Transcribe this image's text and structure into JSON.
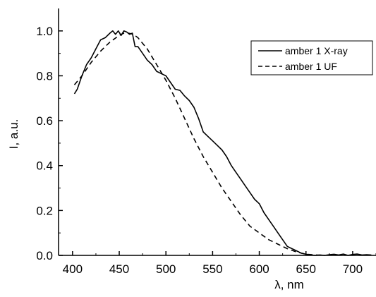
{
  "chart_data": {
    "type": "line",
    "xlabel": "λ, nm",
    "ylabel": "I, a.u.",
    "xlim": [
      385,
      725
    ],
    "ylim": [
      0,
      1.1
    ],
    "x_ticks": [
      400,
      450,
      500,
      550,
      600,
      650,
      700
    ],
    "y_ticks": [
      0.0,
      0.2,
      0.4,
      0.6,
      0.8,
      1.0
    ],
    "x_tick_labels": [
      "400",
      "450",
      "500",
      "550",
      "600",
      "650",
      "700"
    ],
    "y_tick_labels": [
      "0.0",
      "0.2",
      "0.4",
      "0.6",
      "0.8",
      "1.0"
    ],
    "grid": false,
    "legend_position": "top-right",
    "series": [
      {
        "name": "amber 1 X-ray",
        "style": "solid",
        "color": "#000000",
        "x": [
          402,
          405,
          410,
          415,
          420,
          425,
          430,
          435,
          440,
          443,
          446,
          449,
          452,
          455,
          458,
          461,
          464,
          467,
          470,
          475,
          480,
          485,
          490,
          495,
          500,
          505,
          510,
          515,
          520,
          525,
          530,
          535,
          540,
          545,
          550,
          555,
          560,
          565,
          570,
          575,
          580,
          585,
          590,
          595,
          600,
          605,
          610,
          615,
          620,
          625,
          630,
          635,
          640,
          645,
          650,
          655,
          660,
          665,
          670,
          675,
          680,
          685,
          690,
          695,
          700,
          705,
          710,
          715,
          720
        ],
        "y": [
          0.72,
          0.74,
          0.8,
          0.85,
          0.88,
          0.92,
          0.96,
          0.97,
          0.99,
          1.0,
          0.985,
          1.0,
          0.98,
          1.0,
          0.995,
          0.985,
          0.99,
          0.93,
          0.93,
          0.9,
          0.87,
          0.85,
          0.82,
          0.81,
          0.8,
          0.77,
          0.74,
          0.735,
          0.71,
          0.69,
          0.66,
          0.61,
          0.55,
          0.53,
          0.51,
          0.49,
          0.47,
          0.44,
          0.4,
          0.37,
          0.34,
          0.31,
          0.28,
          0.25,
          0.23,
          0.19,
          0.16,
          0.13,
          0.1,
          0.07,
          0.04,
          0.03,
          0.02,
          0.01,
          0.005,
          0.002,
          0.0,
          0.002,
          0.0,
          0.003,
          0.005,
          0.002,
          0.006,
          0.0,
          0.004,
          0.006,
          0.002,
          0.003,
          0.002
        ]
      },
      {
        "name": "amber 1 UF",
        "style": "dashed",
        "color": "#000000",
        "x": [
          402,
          410,
          420,
          430,
          440,
          450,
          455,
          460,
          465,
          470,
          480,
          490,
          500,
          510,
          520,
          530,
          540,
          550,
          560,
          570,
          580,
          590,
          600,
          610,
          620,
          630,
          640,
          650,
          660,
          670
        ],
        "y": [
          0.76,
          0.8,
          0.86,
          0.91,
          0.95,
          0.98,
          0.99,
          0.99,
          0.985,
          0.97,
          0.92,
          0.85,
          0.78,
          0.7,
          0.61,
          0.52,
          0.44,
          0.37,
          0.3,
          0.24,
          0.18,
          0.13,
          0.1,
          0.07,
          0.05,
          0.03,
          0.015,
          0.005,
          0.002,
          0.0
        ]
      }
    ]
  }
}
